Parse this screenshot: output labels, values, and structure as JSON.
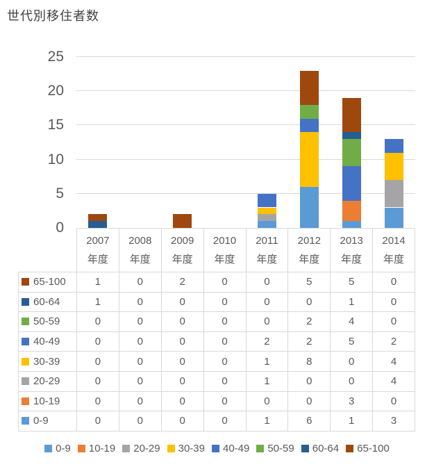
{
  "chart_data": {
    "type": "bar",
    "stacked": true,
    "title": "世代別移住者数",
    "categories": [
      "2007",
      "2008",
      "2009",
      "2010",
      "2011",
      "2012",
      "2013",
      "2014"
    ],
    "category_suffix": "年度",
    "xlabel": "",
    "ylabel": "",
    "y_ticks": [
      0,
      5,
      10,
      15,
      20,
      25
    ],
    "ylim": [
      0,
      25
    ],
    "grid": true,
    "legend_position": "bottom",
    "data_table_shown": true,
    "series": [
      {
        "name": "0-9",
        "color": "#5B9BD5",
        "values": [
          0,
          0,
          0,
          0,
          1,
          6,
          1,
          3
        ]
      },
      {
        "name": "10-19",
        "color": "#ED7D31",
        "values": [
          0,
          0,
          0,
          0,
          0,
          0,
          3,
          0
        ]
      },
      {
        "name": "20-29",
        "color": "#A5A5A5",
        "values": [
          0,
          0,
          0,
          0,
          1,
          0,
          0,
          4
        ]
      },
      {
        "name": "30-39",
        "color": "#FFC000",
        "values": [
          0,
          0,
          0,
          0,
          1,
          8,
          0,
          4
        ]
      },
      {
        "name": "40-49",
        "color": "#4472C4",
        "values": [
          0,
          0,
          0,
          0,
          2,
          2,
          5,
          2
        ]
      },
      {
        "name": "50-59",
        "color": "#70AD47",
        "values": [
          0,
          0,
          0,
          0,
          0,
          2,
          4,
          0
        ]
      },
      {
        "name": "60-64",
        "color": "#255E91",
        "values": [
          1,
          0,
          0,
          0,
          0,
          0,
          1,
          0
        ]
      },
      {
        "name": "65-100",
        "color": "#9E480E",
        "values": [
          1,
          0,
          2,
          0,
          0,
          5,
          5,
          0
        ]
      }
    ],
    "table_row_order": [
      "65-100",
      "60-64",
      "50-59",
      "40-49",
      "30-39",
      "20-29",
      "10-19",
      "0-9"
    ]
  },
  "colors": {
    "gridline": "#D9D9D9",
    "table_border": "#D9D9D9",
    "axis_text": "#595959",
    "table_text": "#595959",
    "title_text": "#3F3F3F",
    "background": "#FFFFFF"
  }
}
